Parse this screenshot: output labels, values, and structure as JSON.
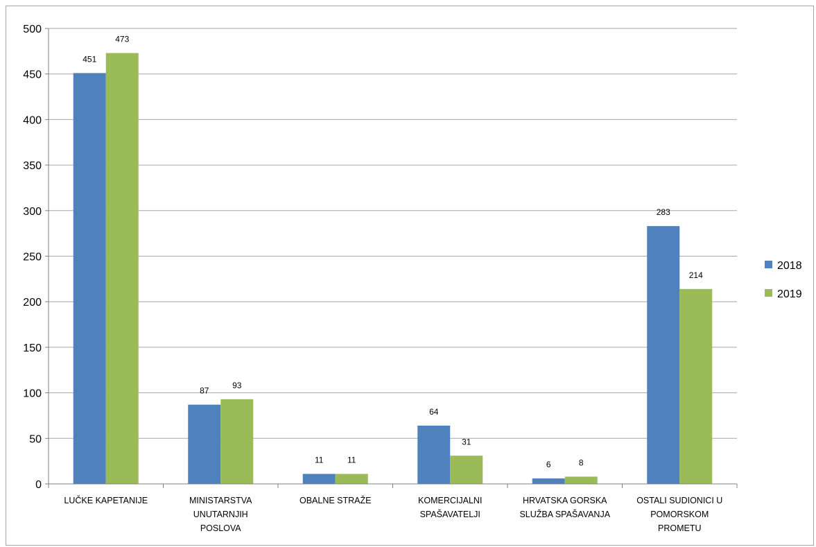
{
  "chart_data": {
    "type": "bar",
    "categories": [
      [
        "LUČKE KAPETANIJE"
      ],
      [
        "MINISTARSTVA",
        "UNUTARNJIH",
        "POSLOVA"
      ],
      [
        "OBALNE STRAŽE"
      ],
      [
        "KOMERCIJALNI",
        "SPAŠAVATELJI"
      ],
      [
        "HRVATSKA GORSKA",
        "SLUŽBA SPAŠAVANJA"
      ],
      [
        "OSTALI SUDIONICI U",
        "POMORSKOM",
        "PROMETU"
      ]
    ],
    "series": [
      {
        "name": "2018",
        "color": "#4f81bd",
        "values": [
          451,
          87,
          11,
          64,
          6,
          283
        ]
      },
      {
        "name": "2019",
        "color": "#9bbb59",
        "values": [
          473,
          93,
          11,
          31,
          8,
          214
        ]
      }
    ],
    "ylim": [
      0,
      500
    ],
    "yticks": [
      "0",
      "50",
      "100",
      "150",
      "200",
      "250",
      "300",
      "350",
      "400",
      "450",
      "500"
    ],
    "grid": true,
    "legend": "right",
    "data_labels": true,
    "title": "",
    "xlabel": "",
    "ylabel": ""
  }
}
